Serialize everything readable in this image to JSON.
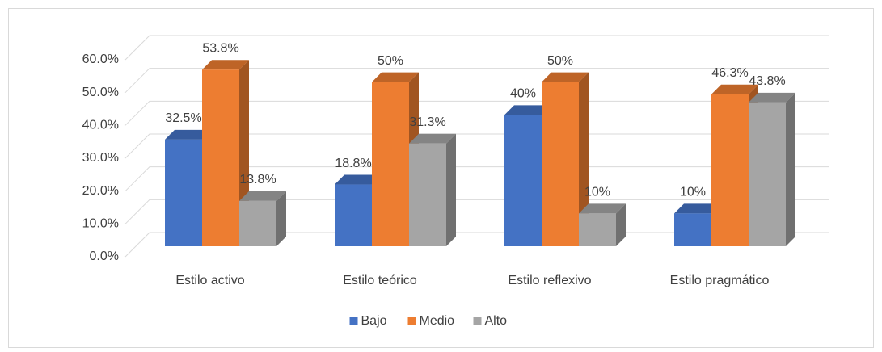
{
  "chart_data": {
    "type": "bar3d",
    "categories": [
      "Estilo activo",
      "Estilo teórico",
      "Estilo reflexivo",
      "Estilo pragmático"
    ],
    "series": [
      {
        "name": "Bajo",
        "color": "#4472c4",
        "values": [
          32.5,
          18.8,
          40,
          10
        ],
        "value_labels": [
          "32.5%",
          "18.8%",
          "40%",
          "10%"
        ]
      },
      {
        "name": "Medio",
        "color": "#ed7d31",
        "values": [
          53.8,
          50,
          50,
          46.3
        ],
        "value_labels": [
          "53.8%",
          "50%",
          "50%",
          "46.3%"
        ]
      },
      {
        "name": "Alto",
        "color": "#a5a5a5",
        "values": [
          13.8,
          31.3,
          10,
          43.8
        ],
        "value_labels": [
          "13.8%",
          "31.3%",
          "10%",
          "43.8%"
        ]
      }
    ],
    "ylim": [
      0,
      60
    ],
    "yticks": [
      {
        "value": 0,
        "label": "0.0%"
      },
      {
        "value": 10,
        "label": "10.0%"
      },
      {
        "value": 20,
        "label": "20.0%"
      },
      {
        "value": 30,
        "label": "30.0%"
      },
      {
        "value": 40,
        "label": "40.0%"
      },
      {
        "value": 50,
        "label": "50.0%"
      },
      {
        "value": 60,
        "label": "60.0%"
      }
    ],
    "grid": true,
    "legend": "bottom"
  }
}
